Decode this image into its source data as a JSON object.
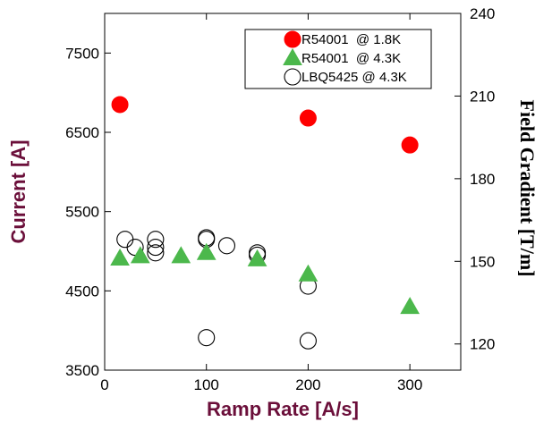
{
  "chart_data": {
    "type": "scatter",
    "xlabel": "Ramp Rate [A/s]",
    "ylabel": "Current [A]",
    "y2label": "Field Gradient [T/m]",
    "xlim": [
      0,
      350
    ],
    "ylim": [
      3500,
      8000
    ],
    "y2lim": [
      110.5,
      240
    ],
    "x_ticks": [
      0,
      100,
      200,
      300
    ],
    "y_ticks": [
      3500,
      4500,
      5500,
      6500,
      7500
    ],
    "y2_ticks": [
      120,
      150,
      180,
      210,
      240
    ],
    "grid": false,
    "legend_position": "top-right",
    "colors": {
      "axis_title": "#6b0f3a",
      "red": "#ff0000",
      "green": "#4cb84c",
      "open": "#000000"
    },
    "series": [
      {
        "name": "R54001  @ 1.8K",
        "marker": "filled-circle",
        "color": "#ff0000",
        "points": [
          [
            15,
            6850
          ],
          [
            200,
            6680
          ],
          [
            300,
            6340
          ]
        ]
      },
      {
        "name": "R54001  @ 4.3K",
        "marker": "filled-triangle",
        "color": "#4cb84c",
        "points": [
          [
            15,
            4910
          ],
          [
            35,
            4940
          ],
          [
            75,
            4940
          ],
          [
            100,
            4980
          ],
          [
            150,
            4900
          ],
          [
            200,
            4710
          ],
          [
            300,
            4300
          ]
        ]
      },
      {
        "name": "LBQ5425 @ 4.3K",
        "marker": "open-circle",
        "color": "#000000",
        "points": [
          [
            20,
            5150
          ],
          [
            30,
            5050
          ],
          [
            50,
            5150
          ],
          [
            50,
            5050
          ],
          [
            50,
            4980
          ],
          [
            100,
            5150
          ],
          [
            100,
            5170
          ],
          [
            120,
            5070
          ],
          [
            150,
            4950
          ],
          [
            150,
            4980
          ],
          [
            200,
            4560
          ],
          [
            100,
            3910
          ],
          [
            200,
            3870
          ]
        ]
      }
    ]
  }
}
